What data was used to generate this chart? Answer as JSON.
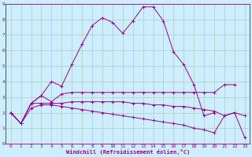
{
  "xlabel": "Windchill (Refroidissement éolien,°C)",
  "bg_color": "#cceeff",
  "grid_color": "#aaccbb",
  "line_color": "#990099",
  "xlim": [
    -0.5,
    23.5
  ],
  "ylim": [
    0,
    9
  ],
  "xticks": [
    0,
    1,
    2,
    3,
    4,
    5,
    6,
    7,
    8,
    9,
    10,
    11,
    12,
    13,
    14,
    15,
    16,
    17,
    18,
    19,
    20,
    21,
    22,
    23
  ],
  "yticks": [
    0,
    1,
    2,
    3,
    4,
    5,
    6,
    7,
    8,
    9
  ],
  "lines": [
    {
      "x": [
        0,
        1,
        2,
        3,
        4,
        5,
        6,
        7,
        8,
        9,
        10,
        11,
        12,
        13,
        14,
        15,
        16,
        17,
        18,
        19,
        20
      ],
      "y": [
        2.0,
        1.3,
        2.6,
        3.1,
        4.0,
        3.7,
        5.1,
        6.4,
        7.6,
        8.1,
        7.8,
        7.1,
        7.9,
        8.8,
        8.8,
        7.9,
        5.9,
        5.1,
        3.8,
        1.8,
        2.0
      ],
      "marker": true
    },
    {
      "x": [
        0,
        1,
        2,
        3,
        4,
        5,
        6,
        7,
        8,
        9,
        10,
        11,
        12,
        13,
        14,
        15,
        16,
        17,
        18,
        19,
        20,
        21,
        22
      ],
      "y": [
        2.0,
        1.3,
        2.6,
        3.1,
        2.7,
        3.2,
        3.3,
        3.3,
        3.3,
        3.3,
        3.3,
        3.3,
        3.3,
        3.3,
        3.3,
        3.3,
        3.3,
        3.3,
        3.3,
        3.3,
        3.3,
        3.8,
        3.8
      ],
      "marker": true
    },
    {
      "x": [
        0,
        1,
        2,
        3,
        4,
        5,
        6,
        7,
        8,
        9,
        10,
        11,
        12,
        13,
        14,
        15,
        16,
        17,
        18,
        19,
        20,
        21,
        22,
        23
      ],
      "y": [
        2.0,
        1.3,
        2.6,
        2.6,
        2.6,
        2.6,
        2.7,
        2.7,
        2.7,
        2.7,
        2.7,
        2.7,
        2.6,
        2.6,
        2.5,
        2.5,
        2.4,
        2.4,
        2.3,
        2.2,
        2.1,
        1.8,
        2.0,
        1.8
      ],
      "marker": true
    },
    {
      "x": [
        0,
        1,
        2,
        3,
        4,
        5,
        6,
        7,
        8,
        9,
        10,
        11,
        12,
        13,
        14,
        15,
        16,
        17,
        18,
        19,
        20,
        21,
        22,
        23
      ],
      "y": [
        2.0,
        1.3,
        2.3,
        2.5,
        2.5,
        2.4,
        2.3,
        2.2,
        2.1,
        2.0,
        1.9,
        1.8,
        1.7,
        1.6,
        1.5,
        1.4,
        1.3,
        1.2,
        1.0,
        0.9,
        0.7,
        1.8,
        2.0,
        0.4
      ],
      "marker": true
    }
  ]
}
